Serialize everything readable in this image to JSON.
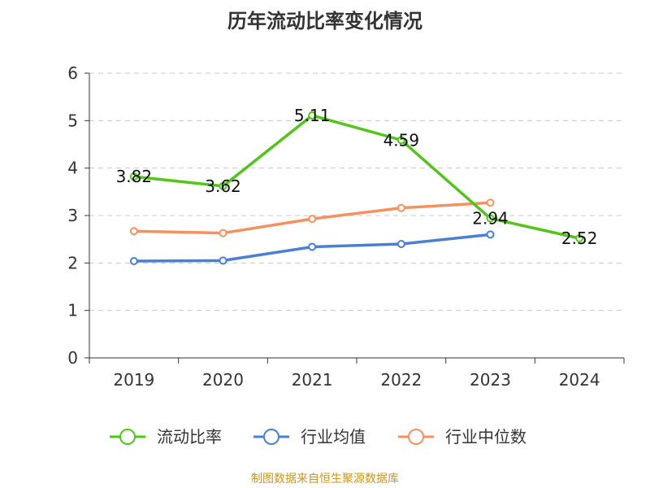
{
  "title": "历年流动比率变化情况",
  "source": "制图数据来自恒生聚源数据库",
  "chart_data": {
    "type": "line",
    "title": "历年流动比率变化情况",
    "categories": [
      "2019",
      "2020",
      "2021",
      "2022",
      "2023",
      "2024"
    ],
    "ylim": [
      0,
      6
    ],
    "yticks": [
      "0",
      "1",
      "2",
      "3",
      "4",
      "5",
      "6"
    ],
    "grid": true,
    "legend_position": "bottom",
    "series": [
      {
        "name": "流动比率",
        "color": "#52c41a",
        "values": [
          3.82,
          3.62,
          5.11,
          4.59,
          2.94,
          2.52
        ],
        "labels": [
          "3.82",
          "3.62",
          "5.11",
          "4.59",
          "2.94",
          "2.52"
        ]
      },
      {
        "name": "行业均值",
        "color": "#4a7fd4",
        "values": [
          2.04,
          2.05,
          2.34,
          2.4,
          2.6,
          null
        ]
      },
      {
        "name": "行业中位数",
        "color": "#f49160",
        "values": [
          2.67,
          2.63,
          2.93,
          3.16,
          3.27,
          null
        ]
      }
    ]
  }
}
